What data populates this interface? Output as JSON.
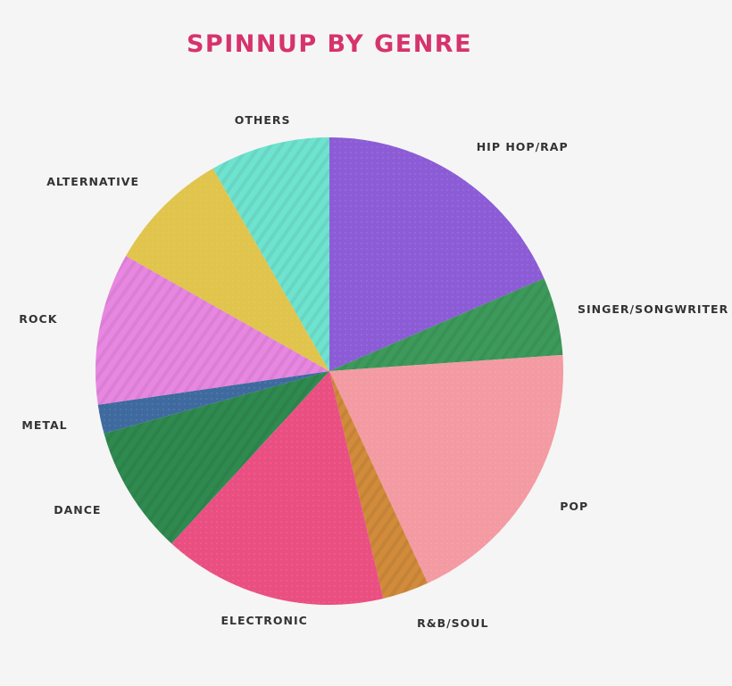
{
  "chart_data": {
    "type": "pie",
    "title": "SPINNUP BY GENRE",
    "slices": [
      {
        "label": "HIP HOP/RAP",
        "value": 18.5,
        "color": "#8c5cd6"
      },
      {
        "label": "SINGER/SONGWRITER",
        "value": 5.4,
        "color": "#3d9a5b"
      },
      {
        "label": "POP",
        "value": 19.2,
        "color": "#f39aa2"
      },
      {
        "label": "R&B/SOUL",
        "value": 3.2,
        "color": "#d18b3a"
      },
      {
        "label": "ELECTRONIC",
        "value": 15.5,
        "color": "#ea4f82"
      },
      {
        "label": "DANCE",
        "value": 8.9,
        "color": "#2f8a4f"
      },
      {
        "label": "METAL",
        "value": 2.0,
        "color": "#3f6a9f"
      },
      {
        "label": "ROCK",
        "value": 10.5,
        "color": "#e887e1"
      },
      {
        "label": "ALTERNATIVE",
        "value": 8.5,
        "color": "#e0c44c"
      },
      {
        "label": "OTHERS",
        "value": 8.3,
        "color": "#6ee3cf"
      }
    ]
  }
}
